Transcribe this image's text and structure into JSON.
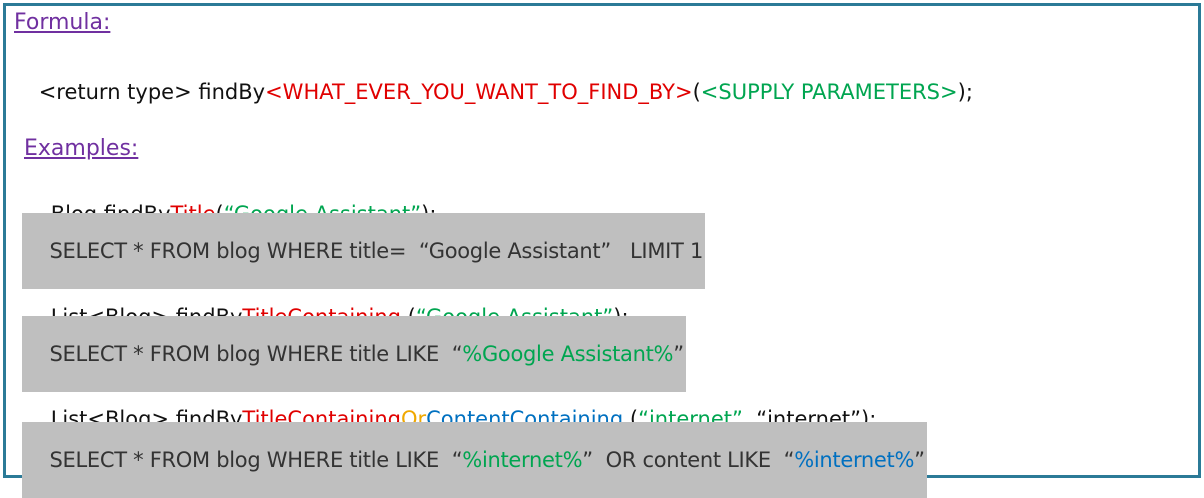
{
  "formula_label": "Formula:",
  "formula": [
    "<return type> findBy",
    "<WHAT_EVER_YOU_WANT_TO_FIND_BY>",
    "(",
    "<SUPPLY PARAMETERS>",
    ");"
  ],
  "examples_label": "Examples:",
  "examples": [
    {
      "code": [
        "Blog findBy",
        "Title",
        "(",
        "“Google Assistant”",
        ");"
      ],
      "sql": [
        "SELECT * FROM blog WHERE title=  “Google Assistant”   LIMIT 1"
      ]
    },
    {
      "code": [
        "List<Blog> findBy",
        "TitleContaining",
        " (",
        "“Google Assistant”",
        ");"
      ],
      "sql": [
        "SELECT * FROM blog WHERE title LIKE  “",
        "%Google Assistant%",
        "”"
      ]
    },
    {
      "code": [
        "List<Blog> findBy",
        "TitleContaining",
        "Or",
        "ContentContaining",
        " (",
        "“internet”, ",
        "“internet”",
        ");"
      ],
      "sql": [
        "SELECT * FROM blog WHERE title LIKE  “",
        "%internet%",
        "”  OR content LIKE  “",
        "%internet%",
        "”"
      ]
    }
  ]
}
